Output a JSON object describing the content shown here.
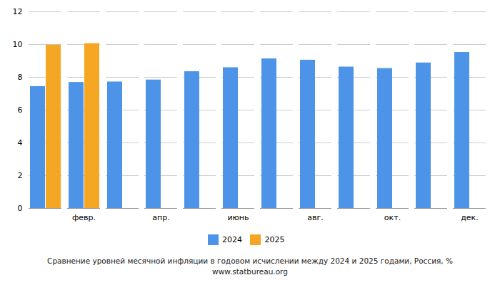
{
  "chart_data": {
    "type": "bar",
    "title": "Сравнение уровней месячной инфляции в годовом исчислении между 2024 и 2025 годами, Россия, %",
    "subtitle": "www.statbureau.org",
    "categories": [
      null,
      "февр.",
      null,
      "апр.",
      null,
      "июнь",
      null,
      "авг.",
      null,
      "окт.",
      null,
      "дек."
    ],
    "series": [
      {
        "name": "2024",
        "color": "#4d94e8",
        "values": [
          7.44,
          7.69,
          7.72,
          7.84,
          8.35,
          8.59,
          9.13,
          9.05,
          8.63,
          8.54,
          8.88,
          9.52
        ]
      },
      {
        "name": "2025",
        "color": "#f5a623",
        "values": [
          9.97,
          10.06,
          null,
          null,
          null,
          null,
          null,
          null,
          null,
          null,
          null,
          null
        ]
      }
    ],
    "ylim": [
      0,
      12
    ],
    "yticks": [
      0,
      2,
      4,
      6,
      8,
      10,
      12
    ],
    "grid": true,
    "legend": "bottom"
  }
}
